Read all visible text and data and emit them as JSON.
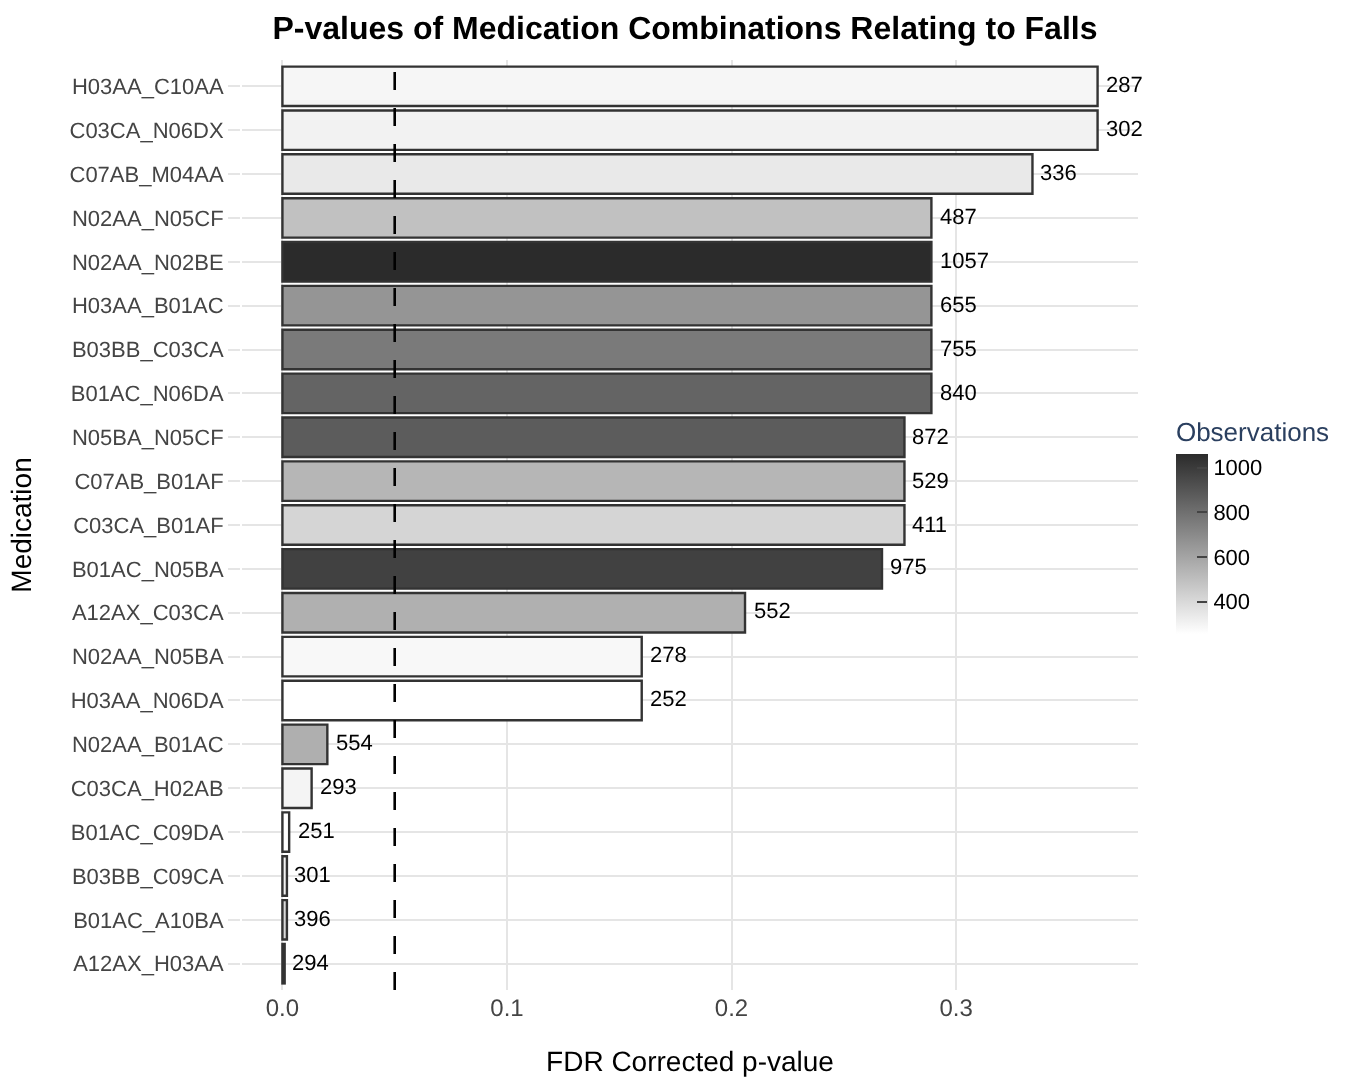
{
  "chart_data": {
    "type": "bar",
    "orientation": "horizontal",
    "title": "P-values of Medication Combinations Relating to Falls",
    "xlabel": "FDR Corrected p-value",
    "ylabel": "Medication",
    "clabel": "Observations",
    "categories": [
      "H03AA_C10AA",
      "C03CA_N06DX",
      "C07AB_M04AA",
      "N02AA_N05CF",
      "N02AA_N02BE",
      "H03AA_B01AC",
      "B03BB_C03CA",
      "B01AC_N06DA",
      "N05BA_N05CF",
      "C07AB_B01AF",
      "C03CA_B01AF",
      "B01AC_N05BA",
      "A12AX_C03CA",
      "N02AA_N05BA",
      "H03AA_N06DA",
      "N02AA_B01AC",
      "C03CA_H02AB",
      "B01AC_C09DA",
      "B03BB_C09CA",
      "B01AC_A10BA",
      "A12AX_H03AA"
    ],
    "values": [
      0.363,
      0.363,
      0.334,
      0.289,
      0.289,
      0.289,
      0.289,
      0.289,
      0.277,
      0.277,
      0.277,
      0.267,
      0.206,
      0.16,
      0.16,
      0.02,
      0.013,
      0.003,
      0.002,
      0.002,
      0.001
    ],
    "cvalues": [
      287,
      302,
      336,
      487,
      1057,
      655,
      755,
      840,
      872,
      529,
      411,
      975,
      552,
      278,
      252,
      554,
      293,
      251,
      301,
      396,
      294
    ],
    "clim": [
      251,
      1057
    ],
    "cticks": [
      400,
      600,
      800,
      1000
    ],
    "annotations": [
      {
        "text": "287",
        "x": 0.363,
        "y": "H03AA_C10AA"
      },
      {
        "text": "302",
        "x": 0.363,
        "y": "C03CA_N06DX"
      },
      {
        "text": "336",
        "x": 0.334,
        "y": "C07AB_M04AA"
      },
      {
        "text": "487",
        "x": 0.289,
        "y": "N02AA_N05CF"
      },
      {
        "text": "1057",
        "x": 0.289,
        "y": "N02AA_N02BE"
      },
      {
        "text": "655",
        "x": 0.289,
        "y": "H03AA_B01AC"
      },
      {
        "text": "755",
        "x": 0.289,
        "y": "B03BB_C03CA"
      },
      {
        "text": "840",
        "x": 0.289,
        "y": "B01AC_N06DA"
      },
      {
        "text": "872",
        "x": 0.277,
        "y": "N05BA_N05CF"
      },
      {
        "text": "529",
        "x": 0.277,
        "y": "C07AB_B01AF"
      },
      {
        "text": "411",
        "x": 0.277,
        "y": "C03CA_B01AF"
      },
      {
        "text": "975",
        "x": 0.267,
        "y": "B01AC_N05BA"
      },
      {
        "text": "552",
        "x": 0.206,
        "y": "A12AX_C03CA"
      },
      {
        "text": "278",
        "x": 0.16,
        "y": "N02AA_N05BA"
      },
      {
        "text": "252",
        "x": 0.16,
        "y": "H03AA_N06DA"
      },
      {
        "text": "554",
        "x": 0.02,
        "y": "N02AA_B01AC"
      },
      {
        "text": "293",
        "x": 0.013,
        "y": "C03CA_H02AB"
      },
      {
        "text": "251",
        "x": 0.003,
        "y": "B01AC_C09DA"
      },
      {
        "text": "301",
        "x": 0.002,
        "y": "B03BB_C09CA"
      },
      {
        "text": "396",
        "x": 0.002,
        "y": "B01AC_A10BA"
      },
      {
        "text": "294",
        "x": 0.001,
        "y": "A12AX_H03AA"
      }
    ],
    "xlim": [
      -0.018,
      0.381
    ],
    "xticks": [
      {
        "value": 0,
        "label": "0.0"
      },
      0.1,
      0.2,
      0.3
    ],
    "ref_lines": [
      {
        "axis": "x",
        "value": 0.05,
        "color": "#000000",
        "line_style": "dashed"
      }
    ],
    "grid": true,
    "legend": false
  }
}
